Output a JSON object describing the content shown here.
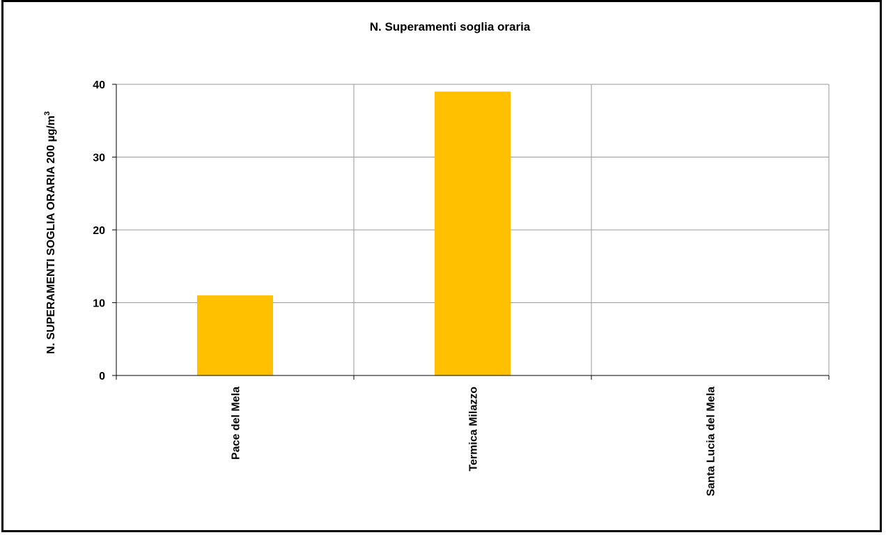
{
  "chart_data": {
    "type": "bar",
    "title": "N. Superamenti soglia oraria",
    "ylabel": "N. SUPERAMENTI SOGLIA ORARIA 200 µg/m",
    "ylabel_superscript": "3",
    "xlabel": "",
    "categories": [
      "Pace del Mela",
      "Termica Milazzo",
      "Santa Lucia del Mela"
    ],
    "values": [
      11,
      39,
      0
    ],
    "ylim": [
      0,
      40
    ],
    "yticks": [
      "0",
      "10",
      "20",
      "30",
      "40"
    ],
    "bar_color": "#FFC000",
    "grid": true,
    "legend": false
  }
}
